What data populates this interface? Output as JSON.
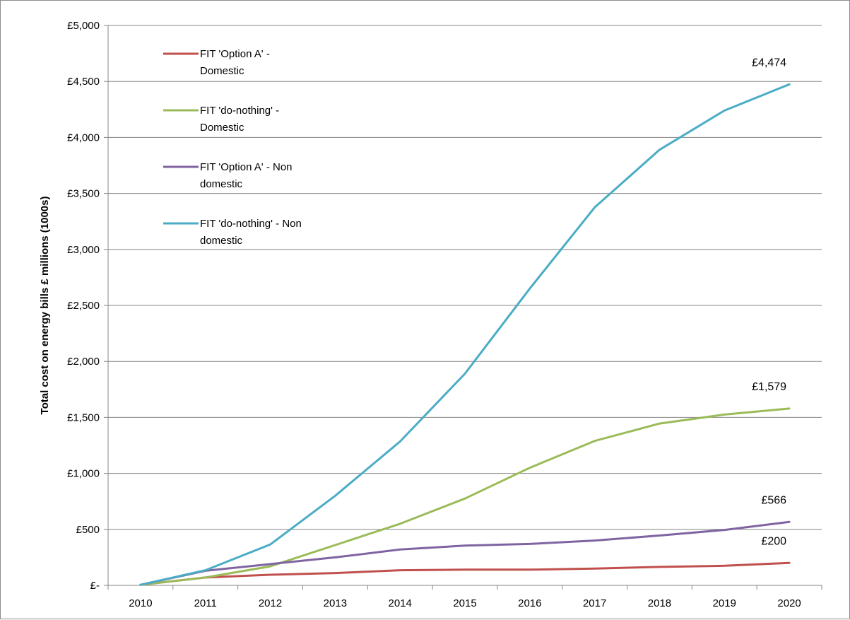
{
  "chart_data": {
    "type": "line",
    "title": "",
    "xlabel": "",
    "ylabel": "Total cost on energy bills £ millions (1000s)",
    "x": [
      "2010",
      "2011",
      "2012",
      "2013",
      "2014",
      "2015",
      "2016",
      "2017",
      "2018",
      "2019",
      "2020"
    ],
    "ylim": [
      0,
      5000
    ],
    "y_ticks": [
      0,
      500,
      1000,
      1500,
      2000,
      2500,
      3000,
      3500,
      4000,
      4500,
      5000
    ],
    "y_tick_labels": [
      "£-",
      "£500",
      "£1,000",
      "£1,500",
      "£2,000",
      "£2,500",
      "£3,000",
      "£3,500",
      "£4,000",
      "£4,500",
      "£5,000"
    ],
    "grid": true,
    "legend_position": "top-left",
    "series": [
      {
        "name": "FIT 'Option A' - Domestic",
        "legend_lines": [
          "FIT 'Option A' -",
          "Domestic"
        ],
        "color": "#c0504d",
        "values": [
          5,
          70,
          95,
          110,
          135,
          140,
          140,
          150,
          165,
          175,
          200
        ],
        "end_label": "£200"
      },
      {
        "name": "FIT 'do-nothing' - Domestic",
        "legend_lines": [
          "FIT 'do-nothing' -",
          "Domestic"
        ],
        "color": "#9bbb59",
        "values": [
          5,
          70,
          170,
          360,
          550,
          775,
          1050,
          1290,
          1445,
          1525,
          1579
        ],
        "end_label": "£1,579"
      },
      {
        "name": "FIT 'Option A' - Non domestic",
        "legend_lines": [
          "FIT 'Option A' - Non",
          "domestic"
        ],
        "color": "#8064a2",
        "values": [
          5,
          130,
          190,
          250,
          320,
          355,
          370,
          400,
          445,
          495,
          566
        ],
        "end_label": "£566"
      },
      {
        "name": "FIT 'do-nothing' - Non domestic",
        "legend_lines": [
          "FIT 'do-nothing' - Non",
          "domestic"
        ],
        "color": "#4bacc6",
        "values": [
          5,
          135,
          365,
          800,
          1285,
          1890,
          2650,
          3375,
          3890,
          4240,
          4474
        ],
        "end_label": "£4,474"
      }
    ]
  }
}
